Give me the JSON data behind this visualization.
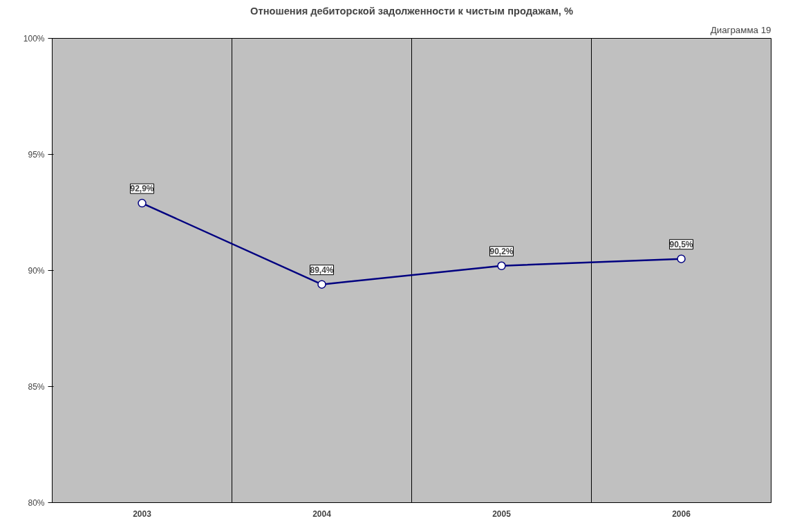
{
  "chart_data": {
    "type": "line",
    "title": "Отношения дебиторской задолженности к чистым продажам, %",
    "annotations": [
      "Диаграмма 19"
    ],
    "categories": [
      "2003",
      "2004",
      "2005",
      "2006"
    ],
    "series": [
      {
        "color": "#000080",
        "values": [
          92.9,
          89.4,
          90.2,
          90.5
        ],
        "value_labels": [
          "92,9%",
          "89,4%",
          "90,2%",
          "90,5%"
        ]
      }
    ],
    "ylim": [
      80,
      100
    ],
    "yticks": [
      {
        "value": 80,
        "label": "80%"
      },
      {
        "value": 85,
        "label": "85%"
      },
      {
        "value": 90,
        "label": "90%"
      },
      {
        "value": 95,
        "label": "95%"
      },
      {
        "value": 100,
        "label": "100%"
      }
    ],
    "grid": "x",
    "marker": "circle",
    "line_style": "solid"
  }
}
